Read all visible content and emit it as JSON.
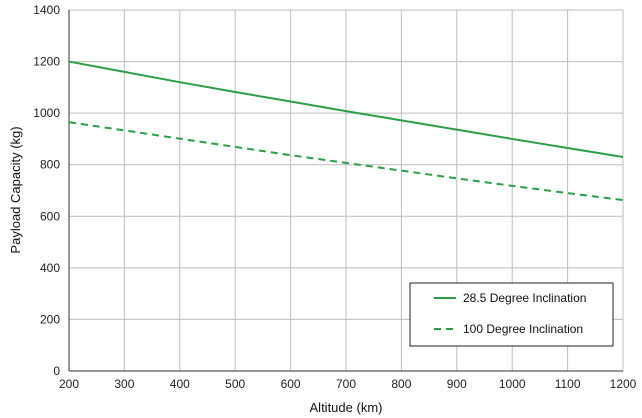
{
  "chart_data": {
    "type": "line",
    "title": "",
    "xlabel": "Altitude (km)",
    "ylabel": "Payload Capacity (kg)",
    "xlim": [
      200,
      1200
    ],
    "ylim": [
      0,
      1400
    ],
    "x_ticks": [
      200,
      300,
      400,
      500,
      600,
      700,
      800,
      900,
      1000,
      1100,
      1200
    ],
    "y_ticks": [
      0,
      200,
      400,
      600,
      800,
      1000,
      1200,
      1400
    ],
    "grid": true,
    "legend_position": "bottom-right",
    "series": [
      {
        "name": "28.5 Degree Inclination",
        "style": "solid",
        "color": "#2aa045",
        "x": [
          200,
          300,
          400,
          500,
          600,
          700,
          800,
          900,
          1000,
          1100,
          1200
        ],
        "y": [
          1200,
          1160,
          1120,
          1082,
          1045,
          1008,
          972,
          936,
          900,
          865,
          830
        ]
      },
      {
        "name": "100 Degree Inclination",
        "style": "dashed",
        "color": "#2aa045",
        "x": [
          200,
          300,
          400,
          500,
          600,
          700,
          800,
          900,
          1000,
          1100,
          1200
        ],
        "y": [
          965,
          933,
          901,
          869,
          837,
          807,
          777,
          747,
          718,
          690,
          663
        ]
      }
    ]
  }
}
